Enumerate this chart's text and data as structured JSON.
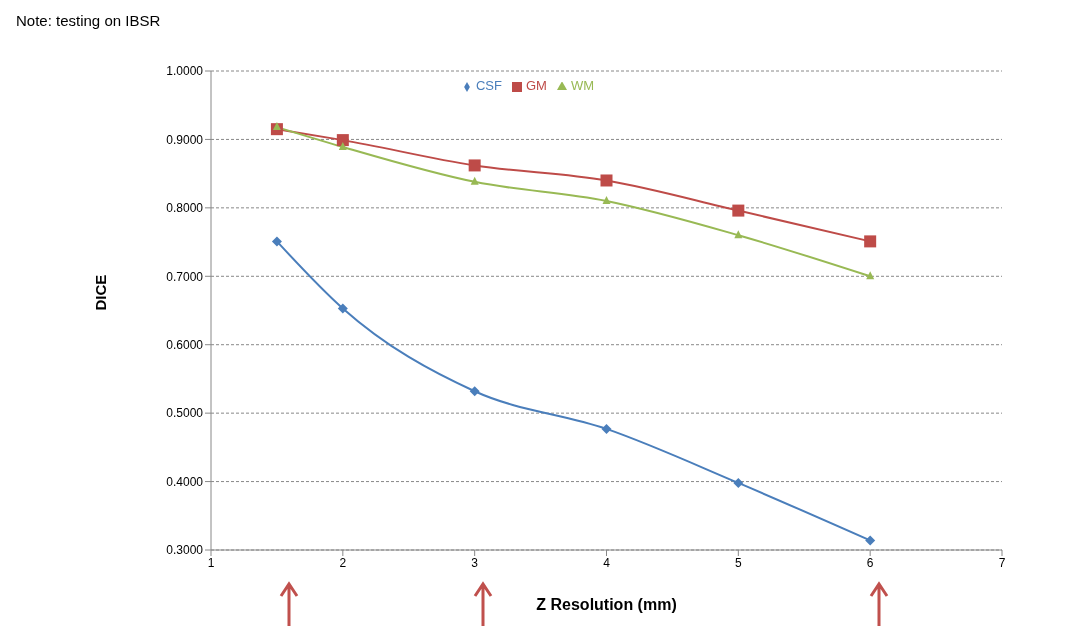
{
  "chart_data": {
    "type": "line",
    "annotations": [
      "Note: testing on IBSR"
    ],
    "xlabel": "Z Resolution (mm)",
    "ylabel": "DICE",
    "x": [
      1.5,
      2,
      3,
      4,
      5,
      6
    ],
    "series": [
      {
        "name": "CSF",
        "color": "#4a7ebb",
        "marker": "diamond",
        "values": [
          0.751,
          0.653,
          0.532,
          0.477,
          0.398,
          0.314
        ]
      },
      {
        "name": "GM",
        "color": "#be4b48",
        "marker": "square",
        "values": [
          0.915,
          0.899,
          0.862,
          0.84,
          0.796,
          0.751
        ]
      },
      {
        "name": "WM",
        "color": "#98b954",
        "marker": "triangle",
        "values": [
          0.918,
          0.889,
          0.838,
          0.81,
          0.76,
          0.7
        ]
      }
    ],
    "xlim": [
      1,
      7
    ],
    "xticks": [
      1,
      2,
      3,
      4,
      5,
      6,
      7
    ],
    "ylim": [
      0.3,
      1.0
    ],
    "yticks": [
      {
        "value": 0.3,
        "label": "0.3000"
      },
      {
        "value": 0.4,
        "label": "0.4000"
      },
      {
        "value": 0.5,
        "label": "0.5000"
      },
      {
        "value": 0.6,
        "label": "0.6000"
      },
      {
        "value": 0.7,
        "label": "0.7000"
      },
      {
        "value": 0.8,
        "label": "0.8000"
      },
      {
        "value": 0.9,
        "label": "0.9000"
      },
      {
        "value": 1.0,
        "label": "1.0000"
      }
    ],
    "grid": "y",
    "legend": "top",
    "line_style": "solid"
  }
}
